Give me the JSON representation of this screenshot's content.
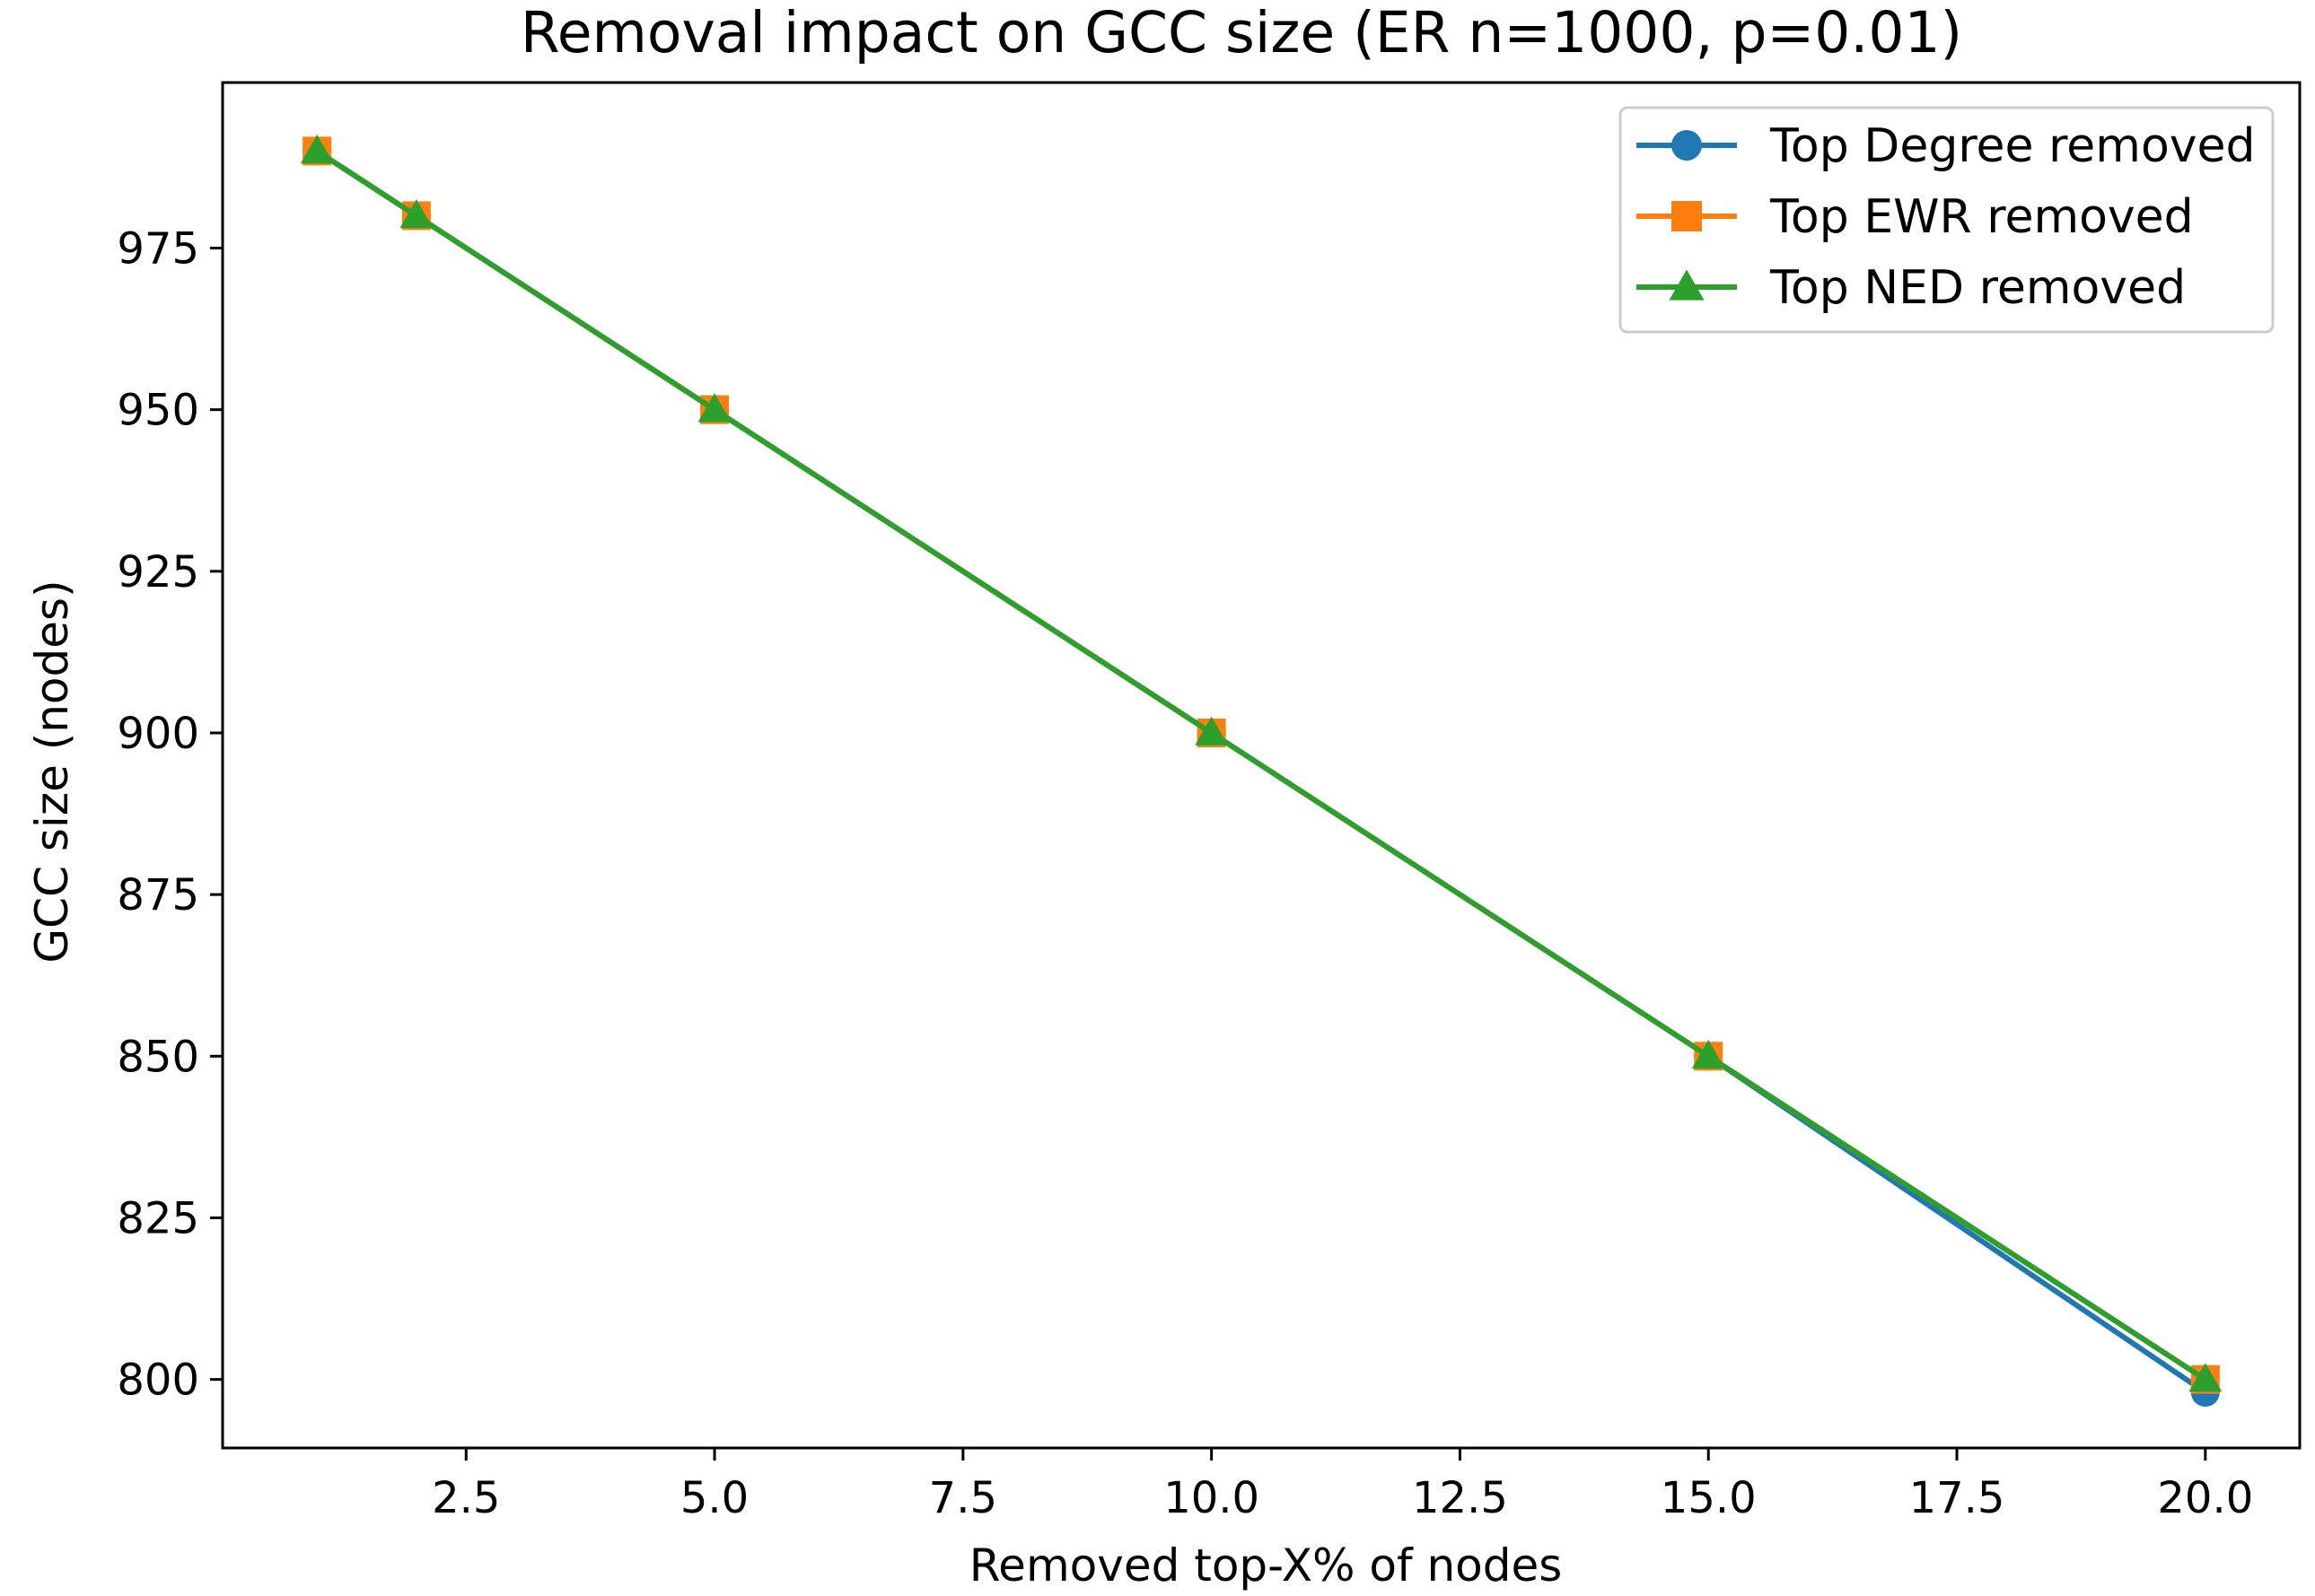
{
  "chart_data": {
    "type": "line",
    "title": "Removal impact on GCC size (ER n=1000, p=0.01)",
    "xlabel": "Removed top-X% of nodes",
    "ylabel": "GCC size (nodes)",
    "xlim": [
      0.05,
      20.95
    ],
    "ylim": [
      789.4,
      1000.6
    ],
    "xticks": [
      2.5,
      5.0,
      7.5,
      10.0,
      12.5,
      15.0,
      17.5,
      20.0
    ],
    "xtick_labels": [
      "2.5",
      "5.0",
      "7.5",
      "10.0",
      "12.5",
      "15.0",
      "17.5",
      "20.0"
    ],
    "yticks": [
      800,
      825,
      850,
      875,
      900,
      925,
      950,
      975
    ],
    "ytick_labels": [
      "800",
      "825",
      "850",
      "875",
      "900",
      "925",
      "950",
      "975"
    ],
    "grid": false,
    "legend_position": "top-right",
    "x": [
      1,
      2,
      5,
      10,
      15,
      20
    ],
    "series": [
      {
        "name": "Top Degree removed",
        "color": "#1f77b4",
        "marker": "circle",
        "values": [
          990,
          980,
          950,
          900,
          850,
          798
        ]
      },
      {
        "name": "Top EWR removed",
        "color": "#ff7f0e",
        "marker": "square",
        "values": [
          990,
          980,
          950,
          900,
          850,
          800
        ]
      },
      {
        "name": "Top NED removed",
        "color": "#2ca02c",
        "marker": "triangle",
        "values": [
          990,
          980,
          950,
          900,
          850,
          800
        ]
      }
    ]
  }
}
